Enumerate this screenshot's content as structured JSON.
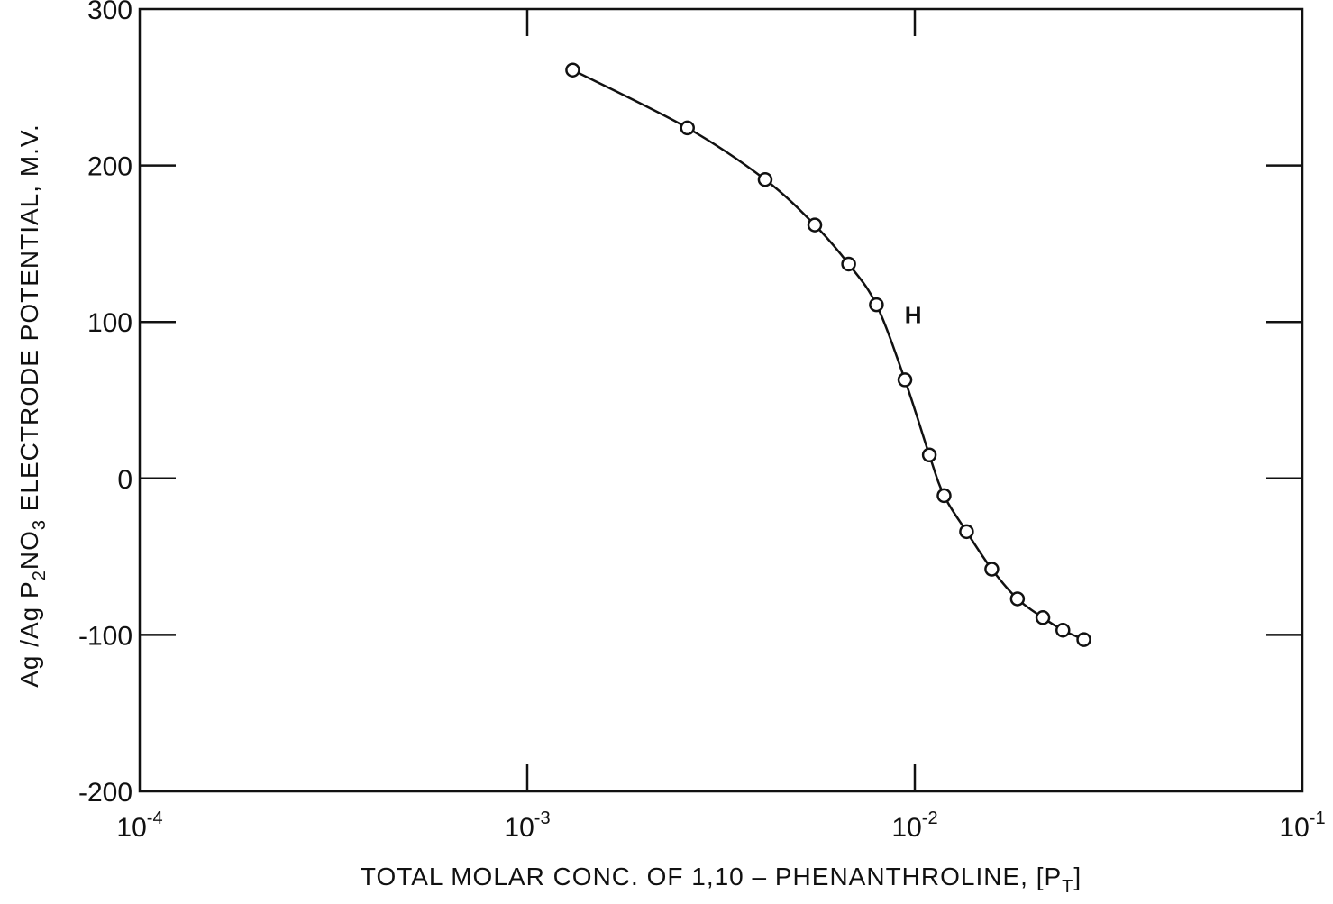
{
  "chart_data": {
    "type": "line",
    "xscale": "log",
    "xlim": [
      0.0001,
      0.1
    ],
    "ylim": [
      -200,
      300
    ],
    "xlabel": "TOTAL MOLAR CONC. OF 1,10 – PHENANTHROLINE, [PT]",
    "xlabel_parts": {
      "main": "TOTAL MOLAR CONC. OF 1,10 – PHENANTHROLINE, [P",
      "sub": "T",
      "close": "]"
    },
    "ylabel": "Ag/Ag P2NO3 ELECTRODE POTENTIAL, M.V.",
    "ylabel_parts": {
      "a": "Ag /Ag P",
      "sub1": "2",
      "b": "NO",
      "sub2": "3",
      "c": " ELECTRODE POTENTIAL, M.V."
    },
    "x_ticks": [
      {
        "value": 0.0001,
        "base": "10",
        "exp": "-4"
      },
      {
        "value": 0.001,
        "base": "10",
        "exp": "-3"
      },
      {
        "value": 0.01,
        "base": "10",
        "exp": "-2"
      },
      {
        "value": 0.1,
        "base": "10",
        "exp": "-1"
      }
    ],
    "y_ticks": [
      {
        "value": 300,
        "label": "300"
      },
      {
        "value": 200,
        "label": "200"
      },
      {
        "value": 100,
        "label": "100"
      },
      {
        "value": 0,
        "label": "0"
      },
      {
        "value": -100,
        "label": "-100"
      },
      {
        "value": -200,
        "label": "-200"
      }
    ],
    "series": [
      {
        "label": "H",
        "marker": "open-circle",
        "x": [
          0.00131,
          0.00259,
          0.00411,
          0.00552,
          0.00675,
          0.00796,
          0.00943,
          0.0109,
          0.0119,
          0.0136,
          0.0158,
          0.0184,
          0.0214,
          0.0241,
          0.0273
        ],
        "y": [
          261,
          224,
          191,
          162,
          137,
          111,
          63,
          15,
          -11,
          -34,
          -58,
          -77,
          -89,
          -97,
          -103
        ]
      }
    ],
    "annotations": [
      {
        "text": "H",
        "x": 0.0099,
        "y": 104
      }
    ],
    "grid": false
  }
}
